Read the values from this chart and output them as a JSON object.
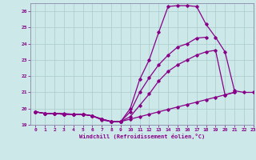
{
  "xlabel": "Windchill (Refroidissement éolien,°C)",
  "background_color": "#cce8e8",
  "grid_color": "#aacccc",
  "line_color": "#880088",
  "spine_color": "#8888aa",
  "ylim": [
    19,
    26.5
  ],
  "xlim": [
    -0.5,
    23
  ],
  "yticks": [
    19,
    20,
    21,
    22,
    23,
    24,
    25,
    26
  ],
  "xticks": [
    0,
    1,
    2,
    3,
    4,
    5,
    6,
    7,
    8,
    9,
    10,
    11,
    12,
    13,
    14,
    15,
    16,
    17,
    18,
    19,
    20,
    21,
    22,
    23
  ],
  "series": [
    [
      19.8,
      19.7,
      19.7,
      19.7,
      19.65,
      19.65,
      19.55,
      19.3,
      19.2,
      19.2,
      20.0,
      21.8,
      23.0,
      24.7,
      26.3,
      26.35,
      26.35,
      26.3,
      25.2,
      24.4,
      23.5,
      21.1,
      21.0,
      21.0
    ],
    [
      19.8,
      19.7,
      19.7,
      19.65,
      19.65,
      19.65,
      19.55,
      19.35,
      19.2,
      19.2,
      19.8,
      21.0,
      21.9,
      22.7,
      23.3,
      23.8,
      24.0,
      24.35,
      24.4,
      null,
      null,
      null,
      null,
      null
    ],
    [
      19.8,
      19.7,
      19.7,
      19.65,
      19.65,
      19.65,
      19.55,
      19.35,
      19.2,
      19.2,
      19.5,
      20.2,
      20.9,
      21.7,
      22.3,
      22.7,
      23.0,
      23.3,
      23.5,
      23.6,
      20.85,
      21.0,
      null,
      null
    ],
    [
      19.8,
      19.7,
      19.7,
      19.65,
      19.65,
      19.65,
      19.55,
      19.35,
      19.2,
      19.2,
      19.35,
      19.5,
      19.65,
      19.8,
      19.95,
      20.1,
      20.25,
      20.4,
      20.55,
      20.7,
      20.85,
      21.0,
      null,
      null
    ]
  ]
}
